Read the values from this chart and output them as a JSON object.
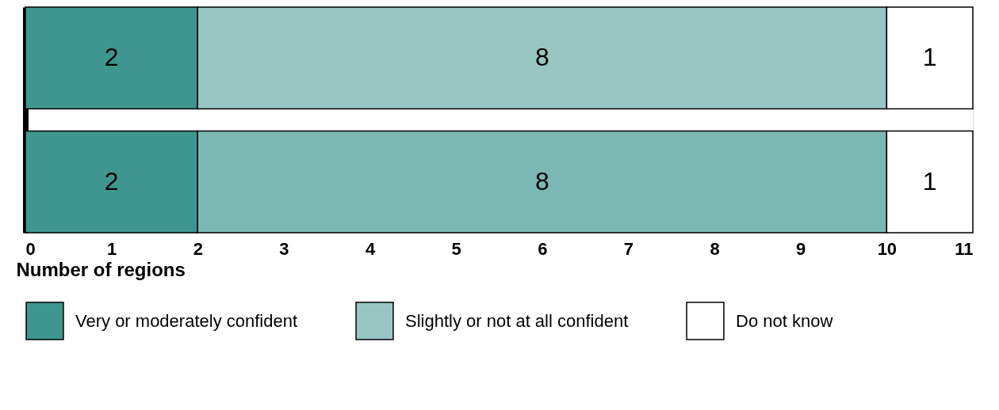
{
  "chart_data": {
    "type": "bar",
    "orientation": "horizontal",
    "stacked": true,
    "categories": [
      null,
      null
    ],
    "series": [
      {
        "name": "Very or moderately confident",
        "color": "#3f9690",
        "values": [
          2,
          2
        ]
      },
      {
        "name": "Slightly or not at all confident",
        "color": "#98c7c3",
        "colors": [
          "#98c7c3",
          "#7bb8b3"
        ],
        "values": [
          8,
          8
        ]
      },
      {
        "name": "Do not know",
        "color": "#ffffff",
        "values": [
          1,
          1
        ]
      }
    ],
    "xlim": [
      0,
      11
    ],
    "xticks": [
      0,
      1,
      2,
      3,
      4,
      5,
      6,
      7,
      8,
      9,
      10,
      11
    ],
    "xlabel": "Number of regions",
    "data_labels": true,
    "legend": "bottom",
    "grid": false,
    "tick_labels": "x"
  }
}
